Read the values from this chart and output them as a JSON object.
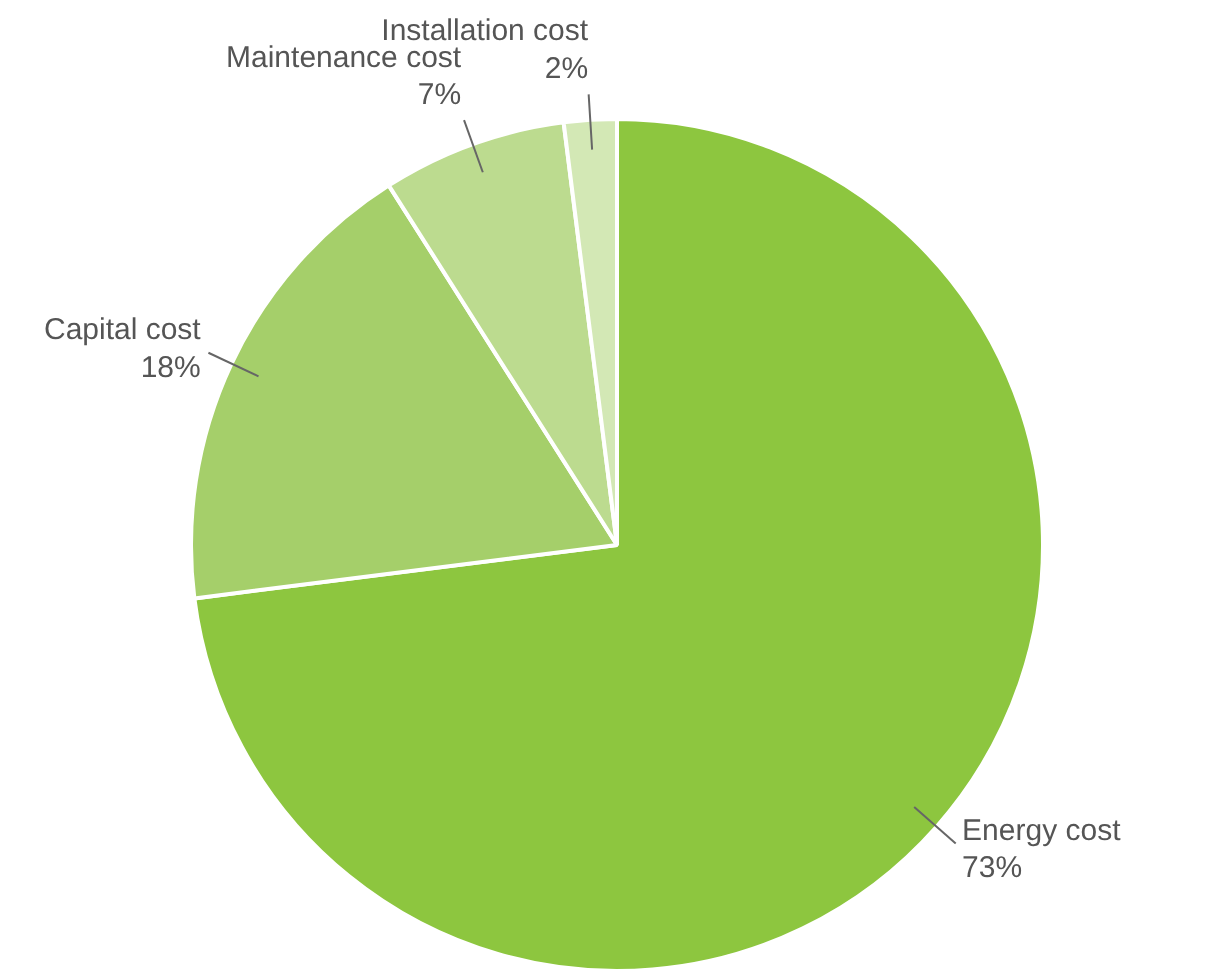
{
  "chart_data": {
    "type": "pie",
    "categories": [
      "Energy cost",
      "Capital cost",
      "Maintenance cost",
      "Installation cost"
    ],
    "values": [
      73,
      18,
      7,
      2
    ],
    "colors": [
      "#8dc63f",
      "#a5cf6a",
      "#bcdb8f",
      "#d3e8b5"
    ],
    "value_labels": [
      "73%",
      "18%",
      "7%",
      "2%"
    ]
  }
}
